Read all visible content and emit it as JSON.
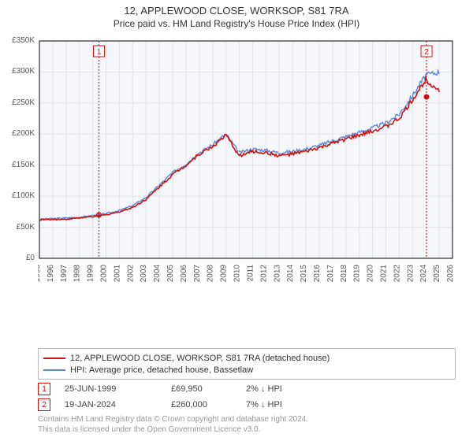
{
  "title": "12, APPLEWOOD CLOSE, WORKSOP, S81 7RA",
  "subtitle": "Price paid vs. HM Land Registry's House Price Index (HPI)",
  "chart": {
    "type": "line",
    "background_color": "#f6f7fb",
    "plot_border_color": "#000000",
    "grid_color": "#e1e3ea",
    "ylim": [
      0,
      350000
    ],
    "ytick_step": 50000,
    "ytick_labels": [
      "£0",
      "£50K",
      "£100K",
      "£150K",
      "£200K",
      "£250K",
      "£300K",
      "£350K"
    ],
    "x_years": [
      1995,
      1996,
      1997,
      1998,
      1999,
      2000,
      2001,
      2002,
      2003,
      2004,
      2005,
      2006,
      2007,
      2008,
      2009,
      2010,
      2011,
      2012,
      2013,
      2014,
      2015,
      2016,
      2017,
      2018,
      2019,
      2020,
      2021,
      2022,
      2023,
      2024,
      2025,
      2026
    ],
    "label_fontsize": 10,
    "label_color": "#555555",
    "series": [
      {
        "name": "price_paid",
        "color": "#d01010",
        "width": 1.6,
        "values": [
          62000,
          62500,
          63000,
          65000,
          67000,
          70000,
          75000,
          82000,
          95000,
          115000,
          135000,
          150000,
          168000,
          180000,
          198000,
          165000,
          172000,
          170000,
          165000,
          168000,
          172000,
          178000,
          185000,
          192000,
          198000,
          205000,
          212000,
          225000,
          255000,
          288000,
          270000,
          null
        ]
      },
      {
        "name": "hpi",
        "color": "#5b88d6",
        "width": 1.4,
        "values": [
          63000,
          64000,
          65000,
          66000,
          69000,
          72000,
          77000,
          85000,
          98000,
          118000,
          138000,
          152000,
          170000,
          183000,
          200000,
          170000,
          176000,
          174000,
          170000,
          172000,
          176000,
          182000,
          189000,
          196000,
          203000,
          210000,
          218000,
          232000,
          262000,
          295000,
          300000,
          null
        ]
      }
    ],
    "sale_markers": [
      {
        "badge": "1",
        "year": 1999.47,
        "price": 69950,
        "color": "#d01010"
      },
      {
        "badge": "2",
        "year": 2024.05,
        "price": 260000,
        "color": "#d01010"
      }
    ],
    "marker_line_color": "#d01010",
    "marker_line_dash": [
      2,
      2
    ]
  },
  "legend": {
    "series1_label": "12, APPLEWOOD CLOSE, WORKSOP, S81 7RA (detached house)",
    "series1_color": "#d01010",
    "series2_label": "HPI: Average price, detached house, Bassetlaw",
    "series2_color": "#5b88d6"
  },
  "sales": [
    {
      "badge": "1",
      "date": "25-JUN-1999",
      "price": "£69,950",
      "hpi": "2% ↓ HPI"
    },
    {
      "badge": "2",
      "date": "19-JAN-2024",
      "price": "£260,000",
      "hpi": "7% ↓ HPI"
    }
  ],
  "footer": {
    "line1": "Contains HM Land Registry data © Crown copyright and database right 2024.",
    "line2": "This data is licensed under the Open Government Licence v3.0."
  }
}
